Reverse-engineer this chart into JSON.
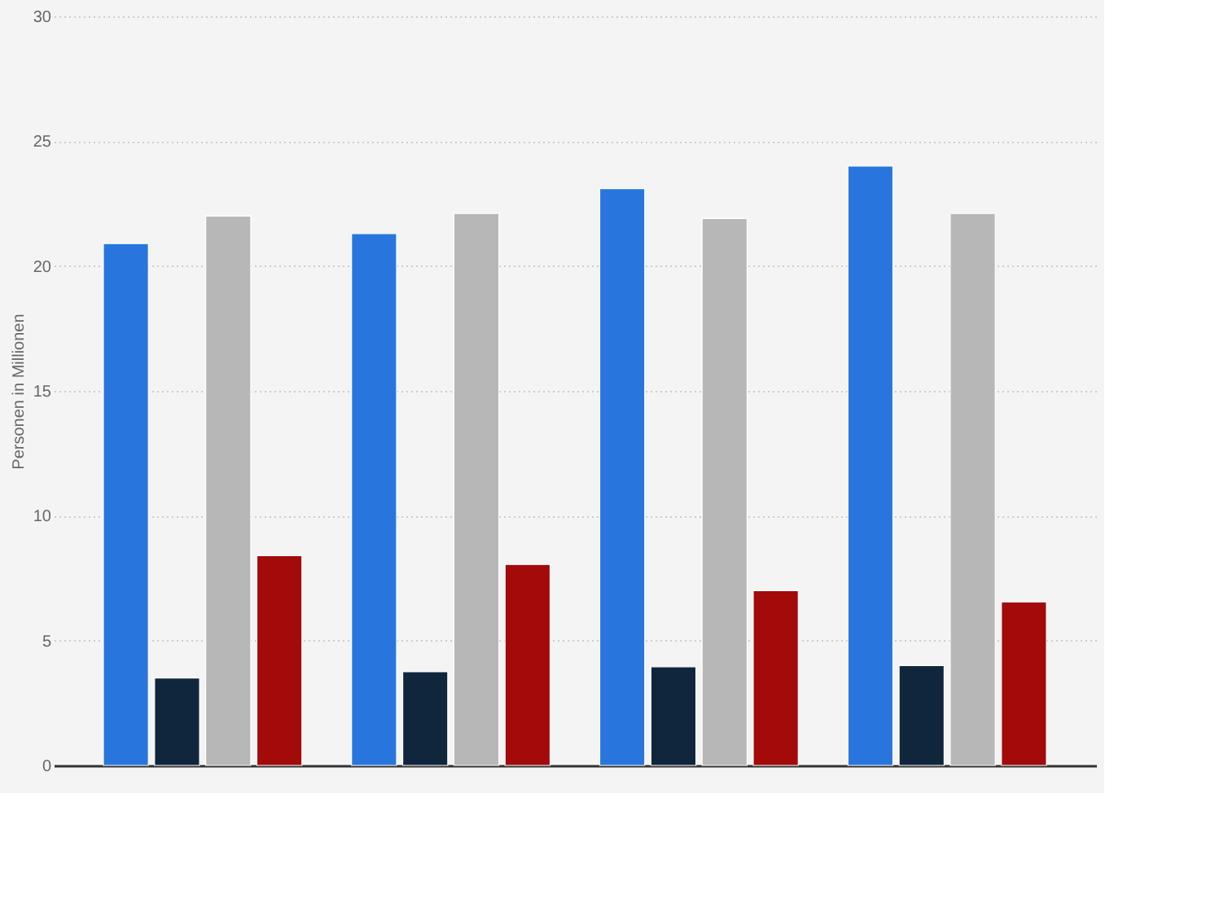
{
  "chart_data": {
    "type": "bar",
    "ylabel": "Personen in Millionen",
    "categories": [
      null,
      null,
      null,
      null
    ],
    "series": [
      {
        "color": "#2876dd",
        "values": [
          20.9,
          21.3,
          23.1,
          24.0
        ]
      },
      {
        "color": "#10263d",
        "values": [
          3.5,
          3.75,
          3.95,
          4.0
        ]
      },
      {
        "color": "#b7b7b7",
        "values": [
          22.0,
          22.1,
          21.9,
          22.1
        ]
      },
      {
        "color": "#a30a0a",
        "values": [
          8.4,
          8.05,
          7.0,
          6.55
        ]
      }
    ],
    "ylim": [
      0,
      30
    ],
    "yticks": [
      0,
      5,
      10,
      15,
      20,
      25,
      30
    ],
    "grid": "y",
    "legend": false
  }
}
